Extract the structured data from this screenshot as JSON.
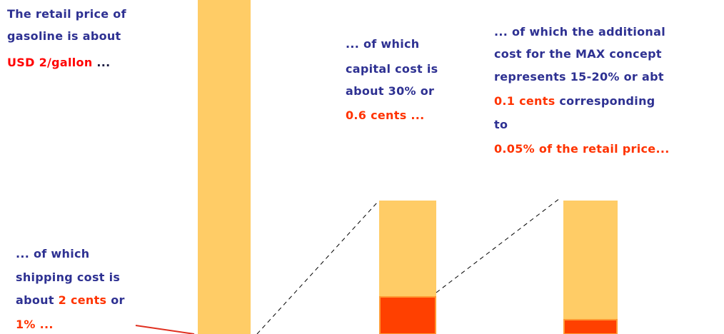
{
  "annotations": [
    {
      "lines": [
        [
          {
            "text": "The retail price of",
            "color": "#2e3192"
          }
        ],
        [
          {
            "text": "gasoline is about",
            "color": "#2e3192"
          }
        ],
        [
          {
            "text": "USD 2/gallon",
            "color": "#ff0000"
          },
          {
            "text": " ...",
            "color": "#1a1a40"
          }
        ]
      ]
    },
    {
      "lines": [
        [
          {
            "text": "... of which",
            "color": "#2e3192"
          }
        ],
        [
          {
            "text": "capital cost is",
            "color": "#2e3192"
          }
        ],
        [
          {
            "text": "about 30% or",
            "color": "#2e3192"
          }
        ],
        [
          {
            "text": "0.6 cents ...",
            "color": "#ff3300"
          }
        ]
      ]
    },
    {
      "lines": [
        [
          {
            "text": "... of which the additional",
            "color": "#2e3192"
          }
        ],
        [
          {
            "text": "cost for the MAX concept",
            "color": "#2e3192"
          }
        ],
        [
          {
            "text": "represents 15-20% or abt",
            "color": "#2e3192"
          }
        ],
        [
          {
            "text": "0.1 cents",
            "color": "#ff3300"
          },
          {
            "text": " corresponding",
            "color": "#2e3192"
          }
        ],
        [
          {
            "text": "to",
            "color": "#2e3192"
          }
        ],
        [
          {
            "text": "0.05% of the retail price...",
            "color": "#ff3300"
          }
        ]
      ]
    },
    {
      "lines": [
        [
          {
            "text": "... of which",
            "color": "#2e3192"
          }
        ],
        [
          {
            "text": "shipping cost is",
            "color": "#2e3192"
          }
        ],
        [
          {
            "text": "about ",
            "color": "#2e3192"
          },
          {
            "text": "2 cents",
            "color": "#ff3300"
          },
          {
            "text": " or",
            "color": "#2e3192"
          }
        ],
        [
          {
            "text": "1% ...",
            "color": "#ff3300"
          }
        ]
      ]
    }
  ]
}
